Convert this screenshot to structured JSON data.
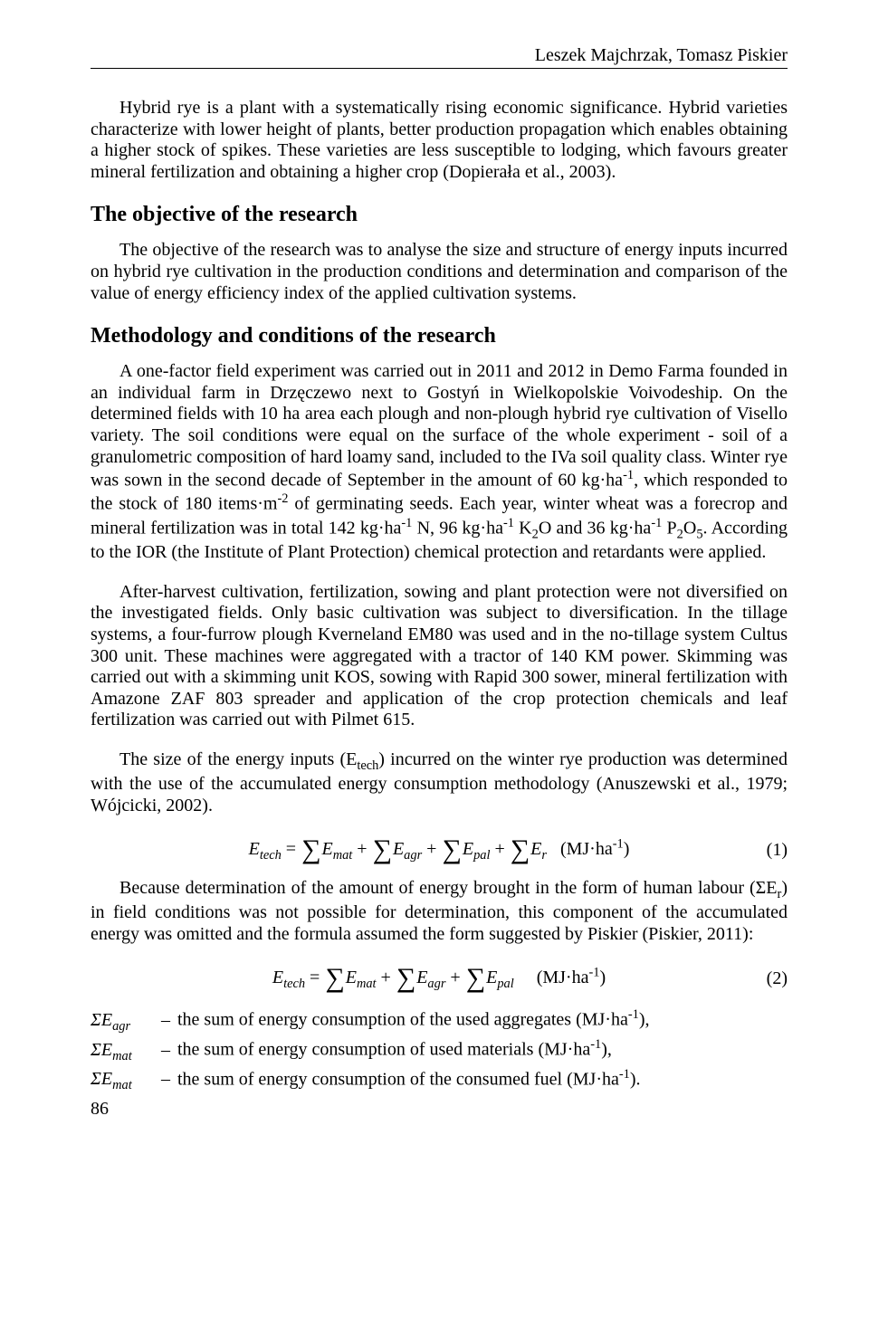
{
  "header": {
    "authors": "Leszek Majchrzak, Tomasz Piskier"
  },
  "intro": {
    "p1": "Hybrid rye is a plant with a systematically rising economic significance. Hybrid varieties characterize with lower height of plants, better production propagation which enables obtaining a higher stock of spikes. These varieties are less susceptible to lodging, which favours greater mineral fertilization and obtaining a higher crop (Dopierała et al., 2003)."
  },
  "objective": {
    "title": "The objective of the research",
    "p1": "The objective of the research was to analyse the size and structure of energy inputs incurred on hybrid rye cultivation in the production conditions and determination and comparison of the value of energy efficiency index of the applied cultivation systems."
  },
  "methodology": {
    "title": "Methodology and conditions of the research",
    "p1_a": "A one-factor field experiment was carried out in 2011 and 2012 in Demo Farma founded in an individual farm in Drzęczewo next to Gostyń in Wielkopolskie Voivodeship. On the determined fields with 10 ha area each plough and non-plough hybrid rye cultivation of Visello variety. The soil conditions were equal on the surface of the whole experiment - soil of a granulometric composition of hard loamy sand, included to the IVa soil quality class. Winter rye was sown in the second decade of September in the amount of 60 kg·ha",
    "p1_b": ", which responded to the stock of 180 items·m",
    "p1_c": " of germinating seeds. Each year, winter wheat was a forecrop and mineral fertilization was in total 142 kg·ha",
    "p1_d": " N, 96 kg·ha",
    "p1_e": " K",
    "p1_f": "O and 36 kg·ha",
    "p1_g": " P",
    "p1_h": "O",
    "p1_i": ". According to the IOR (the Institute of Plant Protection) chemical protection and retardants were applied.",
    "p2": "After-harvest cultivation, fertilization, sowing and plant protection were not diversified on the investigated fields. Only basic cultivation was subject to diversification. In the tillage systems, a four-furrow plough Kverneland EM80 was used and in the no-tillage system Cultus 300 unit. These machines were aggregated with a tractor of 140 KM power. Skimming was carried out with a skimming unit KOS, sowing with Rapid 300 sower, mineral fertilization with Amazone ZAF 803 spreader and application of the crop protection chemicals and leaf fertilization was carried out with Pilmet 615.",
    "p3_a": "The size of the energy inputs (E",
    "p3_b": ") incurred on the winter rye production was determined with the use of the accumulated energy consumption methodology (Anuszewski et al., 1979; Wójcicki, 2002).",
    "eq1_unit": "(MJ·ha",
    "eq1_num": "(1)",
    "p4_a": "Because determination of the amount of energy brought in the form of human labour (ΣE",
    "p4_b": ") in field conditions was not possible for determination, this component of the accumulated energy was omitted and the formula assumed the form suggested by Piskier (Piskier, 2011):",
    "eq2_unit": "(MJ·ha",
    "eq2_num": "(2)"
  },
  "defs": {
    "s1": "ΣE",
    "s1sub": "agr",
    "d1": "the sum of energy consumption of the used aggregates (MJ·ha",
    "s2": "ΣE",
    "s2sub": "mat",
    "d2": "the sum of energy consumption of used materials (MJ·ha",
    "s3": "ΣE",
    "s3sub": "mat",
    "d3": "the sum of energy consumption of the consumed fuel (MJ·ha"
  },
  "page_number": "86"
}
